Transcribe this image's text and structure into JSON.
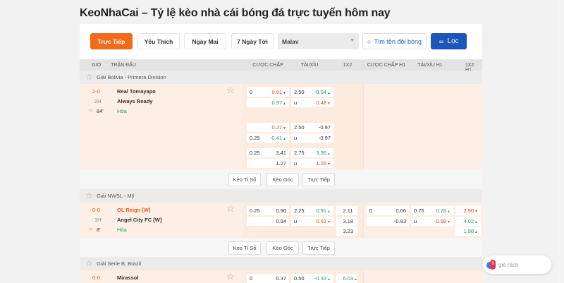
{
  "title": "KeoNhaCai – Tỷ lệ kèo nhà cái bóng đá trực tuyến hôm nay",
  "tabs": [
    {
      "label": "Trực Tiếp",
      "active": true
    },
    {
      "label": "Yêu Thích"
    },
    {
      "label": "Ngày Mai"
    },
    {
      "label": "7 Ngày Tới"
    }
  ],
  "league_select": {
    "value": "Malav"
  },
  "search": {
    "label": "Tìm tên đội bóng"
  },
  "filter": {
    "label": "Lọc"
  },
  "columns": [
    "GIỜ",
    "TRẬN ĐẤU",
    "CƯỢC CHẤP",
    "TÀI/XỈU",
    "1X2",
    "CƯỢC CHẤP H1",
    "TÀI/XỈU H1",
    "1X2 H1"
  ],
  "action_buttons": [
    "Kèo Tỉ Số",
    "Kèo Góc",
    "Trực Tiếp"
  ],
  "colors": {
    "accent": "#f26a1b",
    "primary": "#1c56b8",
    "up": "#24a05e",
    "down": "#e04a1a"
  },
  "leagues": [
    {
      "name": "Giải Bolivia - Primera Division",
      "match": {
        "score": "2-0",
        "period": "2H",
        "minute": "84'",
        "home": "Real Tomayapo",
        "away": "Always Ready",
        "draw": "Hòa",
        "groups": [
          {
            "hdp": [
              [
                "0",
                "0.91",
                "down"
              ],
              [
                "",
                "0.97",
                "up"
              ]
            ],
            "ou": [
              [
                "2.50",
                "-0.64",
                "up"
              ],
              [
                "u",
                "0.48",
                "down"
              ]
            ]
          },
          {
            "hdp": [
              [
                "",
                "0.27",
                "down"
              ],
              [
                "0.25",
                "-0.41",
                "up"
              ]
            ],
            "ou": [
              [
                "2.50",
                "-0.97",
                "none"
              ],
              [
                "u",
                "-0.97",
                "none"
              ]
            ]
          },
          {
            "hdp": [
              [
                "0.25",
                "3.41",
                "none"
              ],
              [
                "",
                "1.27",
                "none"
              ]
            ],
            "ou": [
              [
                "2.75",
                "3.36",
                "up"
              ],
              [
                "u",
                "1.26",
                "down"
              ]
            ]
          }
        ]
      }
    },
    {
      "name": "Giải NWSL - Mỹ",
      "match": {
        "score": "0-0",
        "period": "1H",
        "minute": "8'",
        "home": "OL Reign [W]",
        "away": "Angel City FC [W]",
        "draw": "Hòa",
        "home_highlight": true,
        "groups": [
          {
            "hdp": [
              [
                "0.25",
                "0.90",
                "none"
              ],
              [
                "",
                "0.94",
                "none"
              ]
            ],
            "ou": [
              [
                "2.25",
                "0.91",
                "up"
              ],
              [
                "u",
                "0.91",
                "down"
              ]
            ],
            "x12": [
              [
                "",
                "2.11",
                "none"
              ],
              [
                "",
                "3.18",
                "none"
              ],
              [
                "",
                "3.23",
                "none"
              ]
            ],
            "hdp_h1": [
              [
                "0",
                "0.66",
                "none"
              ],
              [
                "",
                "-0.83",
                "none"
              ]
            ],
            "ou_h1": [
              [
                "0.75",
                "0.78",
                "up"
              ],
              [
                "u",
                "-0.98",
                "down"
              ]
            ],
            "x12_h1": [
              [
                "",
                "2.90",
                "down"
              ],
              [
                "",
                "4.02",
                "up"
              ],
              [
                "",
                "1.98",
                "up"
              ]
            ]
          }
        ]
      }
    },
    {
      "name": "Giải Serie B, Brazil",
      "match": {
        "score": "0-0",
        "home": "Mirassol",
        "groups": [
          {
            "hdp": [
              [
                "0",
                "0.37",
                "none"
              ]
            ],
            "ou": [
              [
                "0.50",
                "-0.33",
                "up"
              ]
            ],
            "x12": [
              [
                "",
                "6.03",
                "up"
              ]
            ]
          }
        ]
      }
    }
  ],
  "chat": {
    "label": "giè rách",
    "badge": "9"
  }
}
